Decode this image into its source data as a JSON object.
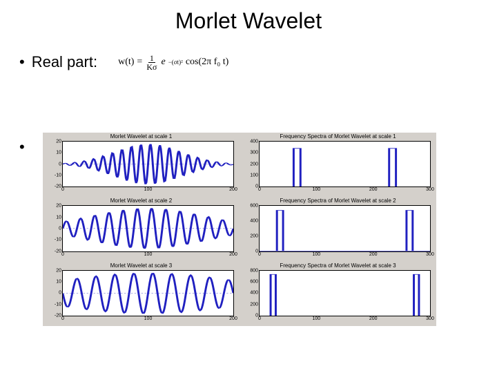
{
  "title": "Morlet Wavelet",
  "bullet1": "Real part:",
  "formula": {
    "lhs": "w(t)",
    "frac_num": "1",
    "frac_den": "Kσ",
    "exp": "−(σt)²",
    "cos": "cos(2π f₀ t)"
  },
  "bullet2": "",
  "figure": {
    "background": "#d4d0cb",
    "plot_bg": "#ffffff",
    "line_color": "#2020c0",
    "axis_color": "#000000",
    "grid_color": "#b0b0b0",
    "panels": [
      {
        "title": "Morlet Wavelet at scale 1",
        "type": "wave",
        "yticks": [
          "20",
          "10",
          "0",
          "-10",
          "-20"
        ],
        "xticks": [
          "0",
          "100",
          "200"
        ],
        "freq": 18,
        "env": 0.06
      },
      {
        "title": "Frequency Spectra of Morlet Wavelet at scale 1",
        "type": "spec",
        "yticks": [
          "400",
          "300",
          "200",
          "100",
          "0"
        ],
        "xticks": [
          "0",
          "100",
          "200",
          "300"
        ],
        "peaks": [
          0.22,
          0.78
        ],
        "pw": 0.02,
        "ph": 0.85
      },
      {
        "title": "Morlet Wavelet at scale 2",
        "type": "wave",
        "yticks": [
          "20",
          "10",
          "0",
          "-10",
          "-20"
        ],
        "xticks": [
          "0",
          "100",
          "200"
        ],
        "freq": 12,
        "env": 0.035
      },
      {
        "title": "Frequency Spectra of Morlet Wavelet at scale 2",
        "type": "spec",
        "yticks": [
          "600",
          "400",
          "200",
          "0"
        ],
        "xticks": [
          "0",
          "100",
          "200",
          "300"
        ],
        "peaks": [
          0.12,
          0.88
        ],
        "pw": 0.018,
        "ph": 0.9
      },
      {
        "title": "Morlet Wavelet at scale 3",
        "type": "wave",
        "yticks": [
          "20",
          "10",
          "0",
          "-10",
          "-20"
        ],
        "xticks": [
          "0",
          "100",
          "200"
        ],
        "freq": 9,
        "env": 0.022
      },
      {
        "title": "Frequency Spectra of Morlet Wavelet at scale 3",
        "type": "spec",
        "yticks": [
          "800",
          "600",
          "400",
          "200",
          "0"
        ],
        "xticks": [
          "0",
          "100",
          "200",
          "300"
        ],
        "peaks": [
          0.08,
          0.92
        ],
        "pw": 0.015,
        "ph": 0.92
      }
    ]
  }
}
